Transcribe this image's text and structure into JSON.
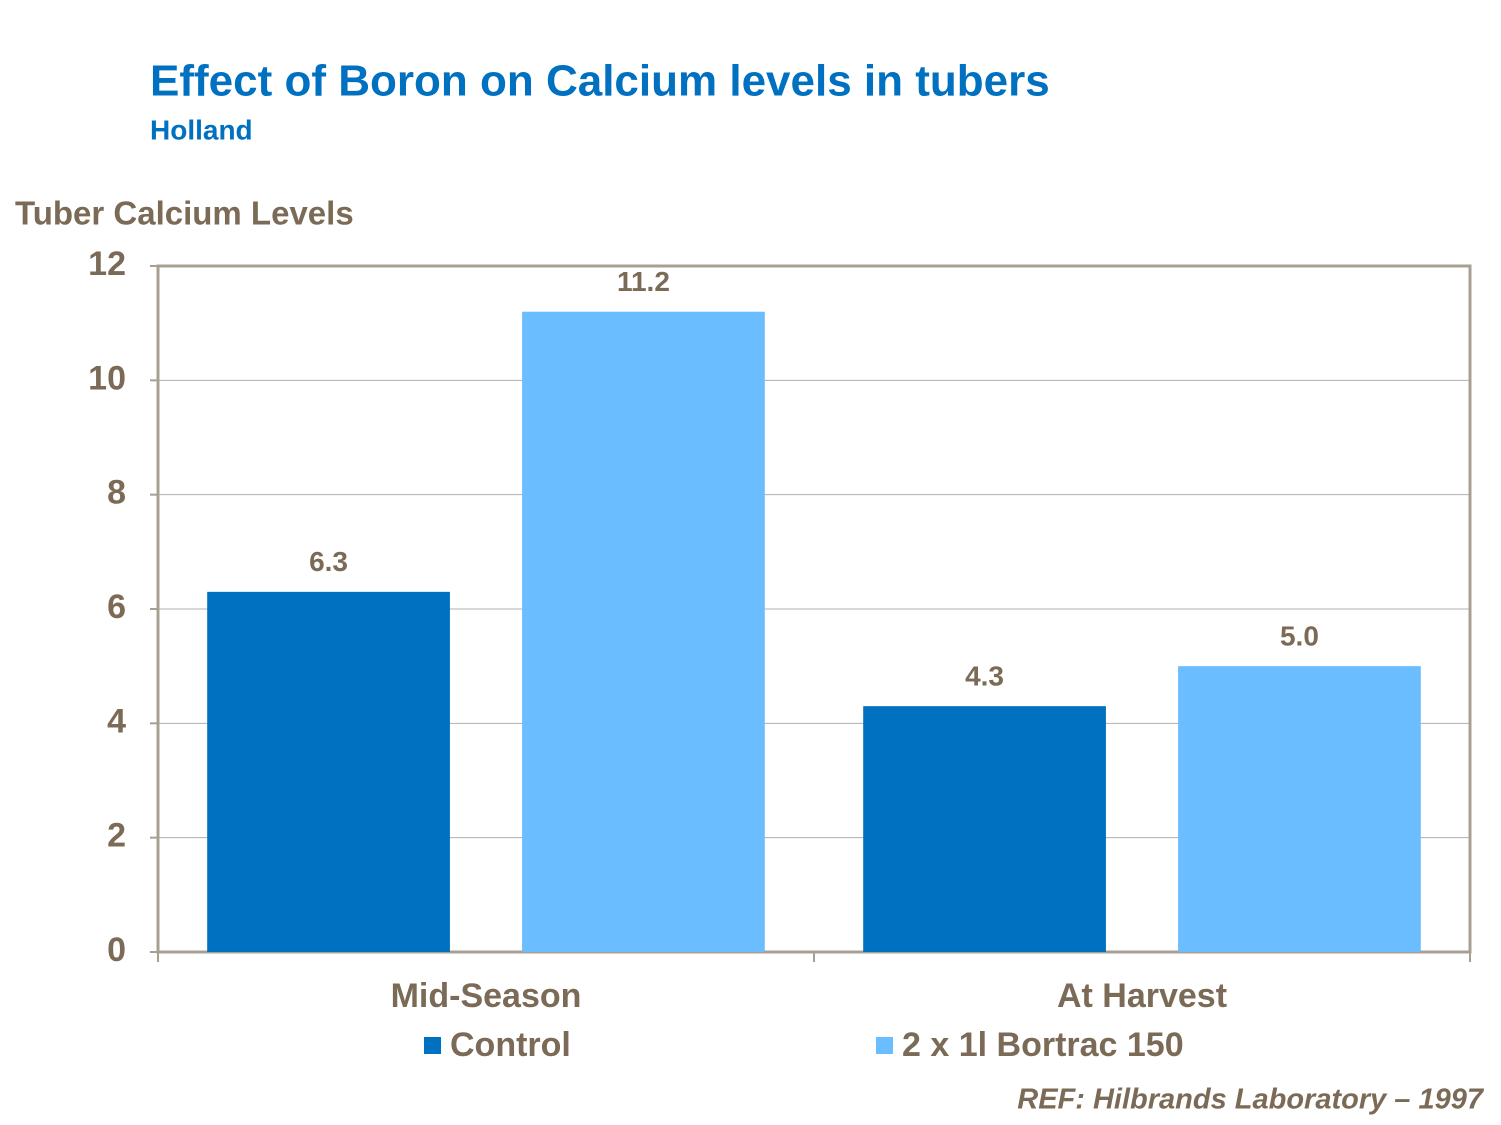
{
  "chart_data": {
    "type": "bar",
    "title": "Effect of Boron on Calcium levels in tubers",
    "subtitle": "Holland",
    "y_label": "Tuber Calcium Levels",
    "source": "REF: Hilbrands Laboratory – 1997",
    "categories": [
      "Mid-Season",
      "At Harvest"
    ],
    "series": [
      {
        "name": "Control",
        "color": "#0070c0",
        "values": [
          6.3,
          4.3
        ],
        "value_labels": [
          "6.3",
          "4.3"
        ]
      },
      {
        "name": "2 x 1l Bortrac 150",
        "color": "#6abdff",
        "values": [
          11.2,
          5.0
        ],
        "value_labels": [
          "11.2",
          "5.0"
        ]
      }
    ],
    "ylim": [
      0,
      12
    ],
    "yticks": [
      0,
      2,
      4,
      6,
      8,
      10,
      12
    ],
    "grid": true
  }
}
